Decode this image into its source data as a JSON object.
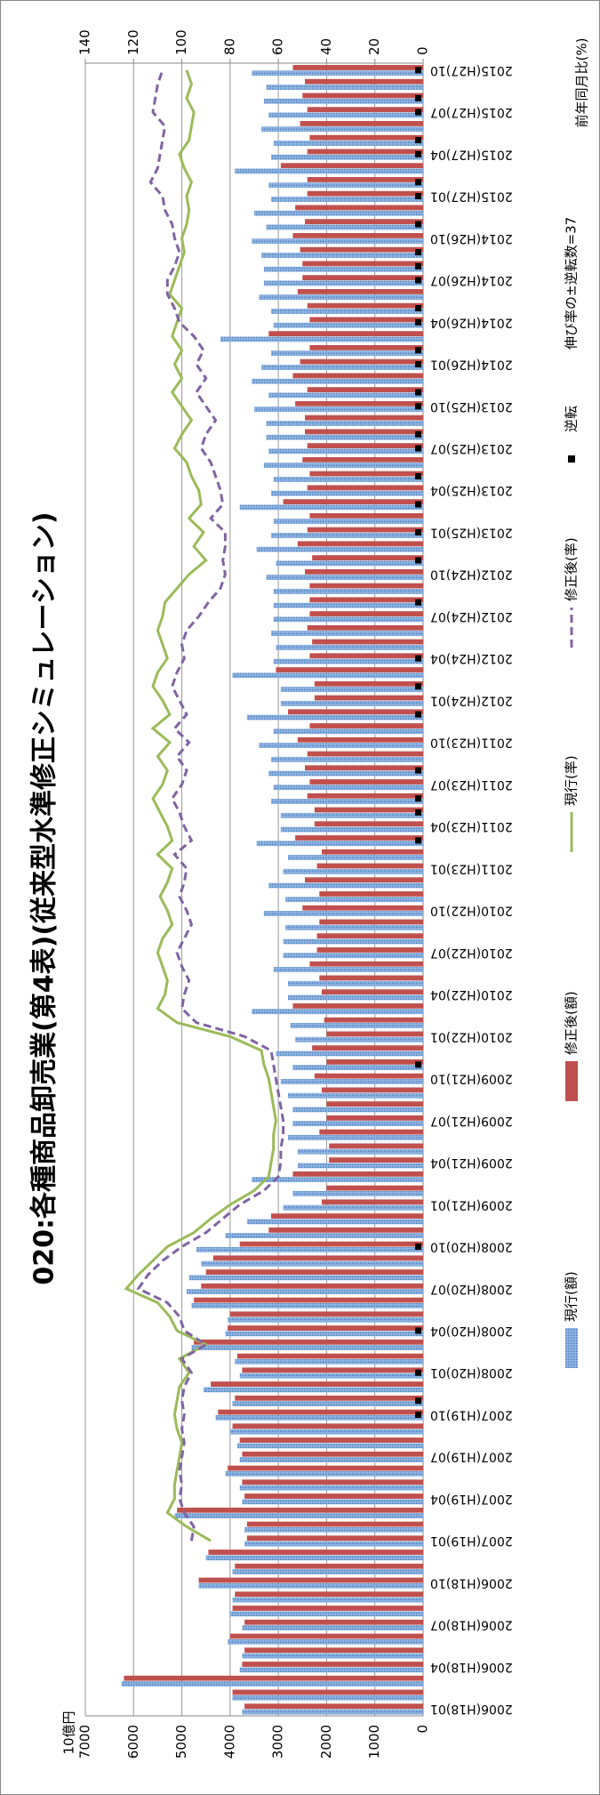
{
  "chart_data": {
    "type": "bar",
    "title": "020:各種商品卸売業(第4表)(従来型水準修正シミュレーション)",
    "y_label": "10億円",
    "y2_label": "前年同月比(%)",
    "annotation": "伸び率の±逆転数=37",
    "categories": [
      "2006(H18)01",
      null,
      null,
      "2006(H18)04",
      null,
      null,
      "2006(H18)07",
      null,
      null,
      "2006(H18)10",
      null,
      null,
      "2007(H19)01",
      null,
      null,
      "2007(H19)04",
      null,
      null,
      "2007(H19)07",
      null,
      null,
      "2007(H19)10",
      null,
      null,
      "2008(H20)01",
      null,
      null,
      "2008(H20)04",
      null,
      null,
      "2008(H20)07",
      null,
      null,
      "2008(H20)10",
      null,
      null,
      "2009(H21)01",
      null,
      null,
      "2009(H21)04",
      null,
      null,
      "2009(H21)07",
      null,
      null,
      "2009(H21)10",
      null,
      null,
      "2010(H22)01",
      null,
      null,
      "2010(H22)04",
      null,
      null,
      "2010(H22)07",
      null,
      null,
      "2010(H22)10",
      null,
      null,
      "2011(H23)01",
      null,
      null,
      "2011(H23)04",
      null,
      null,
      "2011(H23)07",
      null,
      null,
      "2011(H23)10",
      null,
      null,
      "2012(H24)01",
      null,
      null,
      "2012(H24)04",
      null,
      null,
      "2012(H24)07",
      null,
      null,
      "2012(H24)10",
      null,
      null,
      "2013(H25)01",
      null,
      null,
      "2013(H25)04",
      null,
      null,
      "2013(H25)07",
      null,
      null,
      "2013(H25)10",
      null,
      null,
      "2014(H26)01",
      null,
      null,
      "2014(H26)04",
      null,
      null,
      "2014(H26)07",
      null,
      null,
      "2014(H26)10",
      null,
      null,
      "2015(H27)01",
      null,
      null,
      "2015(H27)04",
      null,
      null,
      "2015(H27)07",
      null,
      null,
      "2015(H27)10"
    ],
    "series": [
      {
        "name": "現行(額)",
        "type": "bar",
        "color": "#8db3e2",
        "values": [
          3750,
          3950,
          6250,
          3800,
          3750,
          4050,
          3750,
          4000,
          3950,
          4650,
          3950,
          4500,
          3700,
          3700,
          5150,
          3750,
          3800,
          4100,
          3800,
          3850,
          4000,
          4300,
          3950,
          4550,
          3800,
          3900,
          4800,
          4100,
          4050,
          4800,
          4900,
          4850,
          4600,
          4700,
          4100,
          3650,
          2900,
          2700,
          3550,
          2600,
          2600,
          2800,
          2700,
          2700,
          2800,
          2950,
          2700,
          3050,
          2650,
          2750,
          3550,
          2800,
          2800,
          3100,
          2900,
          2900,
          2850,
          3300,
          2850,
          3200,
          2900,
          2800,
          3450,
          2950,
          2950,
          3150,
          3100,
          3200,
          3150,
          3400,
          3100,
          3650,
          2950,
          2950,
          3950,
          3100,
          3050,
          3150,
          3100,
          3100,
          3100,
          3250,
          3050,
          3450,
          3150,
          3100,
          3800,
          3150,
          3100,
          3300,
          3200,
          3250,
          3250,
          3500,
          3200,
          3550,
          3350,
          3150,
          4200,
          3100,
          3150,
          3400,
          3300,
          3300,
          3350,
          3550,
          3250,
          3500,
          3150,
          3200,
          3900,
          3150,
          3100,
          3350,
          3200,
          3300,
          3250,
          3550
        ]
      },
      {
        "name": "修正後(額)",
        "type": "bar",
        "color": "#c0504d",
        "values": [
          3700,
          3950,
          6200,
          3750,
          3700,
          4000,
          3700,
          3950,
          3900,
          4650,
          3900,
          4450,
          3650,
          3650,
          5100,
          3700,
          3750,
          4050,
          3750,
          3800,
          3950,
          4250,
          3900,
          4400,
          3750,
          3850,
          4750,
          4050,
          4000,
          4750,
          4600,
          4500,
          4350,
          3800,
          3200,
          3150,
          2100,
          2000,
          2700,
          1950,
          1950,
          2150,
          2000,
          2000,
          2100,
          2250,
          2000,
          2300,
          2000,
          2050,
          2700,
          2100,
          2150,
          2350,
          2200,
          2200,
          2150,
          2500,
          2150,
          2450,
          2200,
          2100,
          2650,
          2250,
          2250,
          2400,
          2350,
          2450,
          2400,
          2600,
          2350,
          2800,
          2250,
          2250,
          3050,
          2350,
          2300,
          2400,
          2350,
          2350,
          2350,
          2450,
          2300,
          2600,
          2400,
          2350,
          2900,
          2400,
          2350,
          2500,
          2400,
          2450,
          2450,
          2650,
          2400,
          2700,
          2550,
          2350,
          3200,
          2350,
          2400,
          2600,
          2500,
          2500,
          2550,
          2700,
          2450,
          2650,
          2400,
          2400,
          2950,
          2400,
          2350,
          2550,
          2400,
          2500,
          2450,
          2700
        ]
      },
      {
        "name": "現行(率)",
        "type": "line",
        "axis": "y2",
        "color": "#9bbb59",
        "values": [
          null,
          null,
          null,
          null,
          null,
          null,
          null,
          null,
          null,
          null,
          null,
          null,
          88,
          98,
          106,
          103,
          103,
          102,
          101,
          100,
          102,
          103,
          102,
          101,
          97,
          101,
          90,
          102,
          105,
          110,
          123,
          118,
          112,
          106,
          95,
          88,
          80,
          70,
          64,
          63,
          62,
          62,
          61,
          62,
          63,
          64,
          66,
          67,
          80,
          102,
          110,
          107,
          106,
          108,
          110,
          108,
          104,
          106,
          109,
          106,
          104,
          110,
          104,
          106,
          109,
          112,
          108,
          106,
          110,
          105,
          112,
          105,
          108,
          112,
          110,
          106,
          108,
          110,
          108,
          107,
          102,
          97,
          90,
          95,
          91,
          97,
          92,
          93,
          96,
          98,
          103,
          100,
          96,
          100,
          104,
          100,
          103,
          100,
          104,
          102,
          100,
          105,
          103,
          101,
          99,
          100,
          98,
          97,
          98,
          96,
          99,
          101,
          97,
          96,
          95,
          98,
          96,
          98
        ]
      },
      {
        "name": "修正後(率)",
        "type": "line",
        "axis": "y2",
        "dash": true,
        "color": "#8064a2",
        "values": [
          null,
          null,
          null,
          null,
          null,
          null,
          null,
          null,
          null,
          null,
          null,
          null,
          96,
          95,
          99,
          101,
          100,
          101,
          100,
          99,
          100,
          99,
          100,
          99,
          96,
          100,
          90,
          99,
          101,
          106,
          118,
          114,
          108,
          100,
          90,
          83,
          76,
          66,
          60,
          59,
          59,
          58,
          58,
          59,
          60,
          61,
          62,
          63,
          74,
          94,
          100,
          99,
          97,
          100,
          102,
          99,
          96,
          98,
          101,
          99,
          98,
          103,
          96,
          99,
          101,
          104,
          100,
          98,
          102,
          97,
          103,
          98,
          101,
          104,
          102,
          99,
          100,
          98,
          93,
          89,
          84,
          82,
          83,
          82,
          82,
          88,
          83,
          84,
          86,
          88,
          92,
          90,
          86,
          90,
          94,
          90,
          94,
          91,
          95,
          101,
          103,
          106,
          106,
          103,
          101,
          103,
          104,
          107,
          108,
          113,
          110,
          109,
          108,
          107,
          112,
          111,
          110,
          108
        ]
      },
      {
        "name": "逆転",
        "type": "marker",
        "color": "#000000",
        "values": [
          null,
          null,
          null,
          null,
          null,
          null,
          null,
          null,
          null,
          null,
          null,
          null,
          null,
          null,
          null,
          null,
          null,
          null,
          null,
          null,
          null,
          0,
          0,
          null,
          0,
          null,
          null,
          0,
          null,
          null,
          null,
          null,
          null,
          0,
          null,
          null,
          null,
          null,
          null,
          null,
          null,
          null,
          null,
          null,
          null,
          null,
          0,
          null,
          null,
          null,
          null,
          null,
          null,
          null,
          null,
          null,
          null,
          null,
          null,
          null,
          null,
          null,
          0,
          null,
          0,
          0,
          null,
          0,
          null,
          null,
          null,
          0,
          null,
          0,
          null,
          0,
          null,
          null,
          null,
          0,
          null,
          null,
          0,
          null,
          0,
          null,
          0,
          null,
          0,
          null,
          0,
          0,
          null,
          0,
          0,
          null,
          0,
          0,
          null,
          0,
          0,
          null,
          0,
          0,
          0,
          null,
          0,
          null,
          0,
          0,
          null,
          0,
          0,
          null,
          0,
          0,
          null,
          0
        ]
      }
    ],
    "ylim": [
      0,
      7000
    ],
    "yticks": [
      0,
      1000,
      2000,
      3000,
      4000,
      5000,
      6000,
      7000
    ],
    "y2lim": [
      0,
      140
    ],
    "y2ticks": [
      0,
      20,
      40,
      60,
      80,
      100,
      120,
      140
    ],
    "grid": true
  }
}
